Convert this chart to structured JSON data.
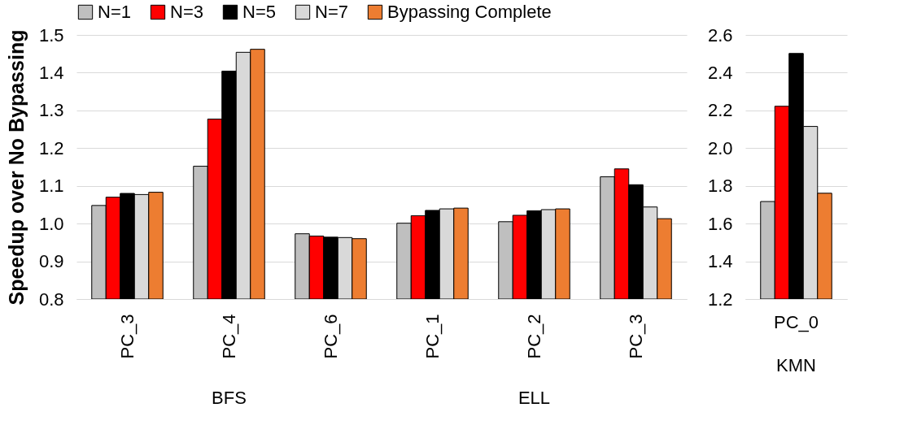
{
  "chart_data": [
    {
      "type": "bar",
      "ylabel": "Speedup over No Bypassing",
      "categories": [
        "PC_3",
        "PC_4",
        "PC_6",
        "PC_1",
        "PC_2",
        "PC_3"
      ],
      "series": [
        {
          "name": "N=1",
          "color": "#bfbfbf",
          "values": [
            1.048,
            1.152,
            0.973,
            1.001,
            1.005,
            1.124
          ]
        },
        {
          "name": "N=3",
          "color": "#ff0000",
          "values": [
            1.07,
            1.277,
            0.967,
            1.021,
            1.022,
            1.145
          ]
        },
        {
          "name": "N=5",
          "color": "#000000",
          "values": [
            1.08,
            1.404,
            0.964,
            1.035,
            1.034,
            1.103
          ]
        },
        {
          "name": "N=7",
          "color": "#d9d9d9",
          "values": [
            1.077,
            1.454,
            0.963,
            1.039,
            1.037,
            1.044
          ]
        },
        {
          "name": "Bypassing Complete",
          "color": "#ed7d31",
          "values": [
            1.083,
            1.462,
            0.96,
            1.041,
            1.039,
            1.013
          ]
        }
      ],
      "ylim": [
        0.8,
        1.5
      ],
      "yticks": [
        {
          "value": 0.8,
          "label": "0.8"
        },
        {
          "value": 0.9,
          "label": "0.9"
        },
        {
          "value": 1.0,
          "label": "1.0"
        },
        {
          "value": 1.1,
          "label": "1.1"
        },
        {
          "value": 1.2,
          "label": "1.2"
        },
        {
          "value": 1.3,
          "label": "1.3"
        },
        {
          "value": 1.4,
          "label": "1.4"
        },
        {
          "value": 1.5,
          "label": "1.5"
        }
      ],
      "grid": "y",
      "legend": "top",
      "annotations": [
        "BFS",
        "ELL"
      ]
    },
    {
      "type": "bar",
      "categories": [
        "PC_0"
      ],
      "series": [
        {
          "name": "N=1",
          "color": "#bfbfbf",
          "values": [
            1.717
          ]
        },
        {
          "name": "N=3",
          "color": "#ff0000",
          "values": [
            2.222
          ]
        },
        {
          "name": "N=5",
          "color": "#000000",
          "values": [
            2.502
          ]
        },
        {
          "name": "N=7",
          "color": "#d9d9d9",
          "values": [
            2.115
          ]
        },
        {
          "name": "Bypassing Complete",
          "color": "#ed7d31",
          "values": [
            1.761
          ]
        }
      ],
      "ylim": [
        1.2,
        2.6
      ],
      "yticks": [
        {
          "value": 1.2,
          "label": "1.2"
        },
        {
          "value": 1.4,
          "label": "1.4"
        },
        {
          "value": 1.6,
          "label": "1.6"
        },
        {
          "value": 1.8,
          "label": "1.8"
        },
        {
          "value": 2.0,
          "label": "2.0"
        },
        {
          "value": 2.2,
          "label": "2.2"
        },
        {
          "value": 2.4,
          "label": "2.4"
        },
        {
          "value": 2.6,
          "label": "2.6"
        }
      ],
      "grid": "y",
      "legend": false,
      "annotations": [
        "KMN"
      ]
    }
  ]
}
